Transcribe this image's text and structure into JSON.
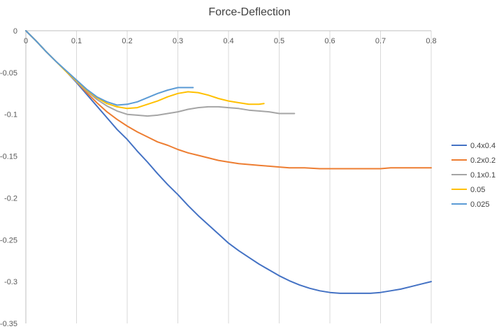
{
  "chart_data": {
    "type": "line",
    "title": "Force-Deflection",
    "xlabel": "",
    "ylabel": "",
    "xlim": [
      0,
      0.8
    ],
    "ylim": [
      -0.35,
      0
    ],
    "x_ticks": [
      "0",
      "0.1",
      "0.2",
      "0.3",
      "0.4",
      "0.5",
      "0.6",
      "0.7",
      "0.8"
    ],
    "y_ticks": [
      "0",
      "-0.05",
      "-0.1",
      "-0.15",
      "-0.2",
      "-0.25",
      "-0.3",
      "-0.35"
    ],
    "x_tick_values": [
      0,
      0.1,
      0.2,
      0.3,
      0.4,
      0.5,
      0.6,
      0.7,
      0.8
    ],
    "y_tick_values": [
      0,
      -0.05,
      -0.1,
      -0.15,
      -0.2,
      -0.25,
      -0.3,
      -0.35
    ],
    "grid": "vertical",
    "legend_position": "right",
    "series": [
      {
        "name": "0.4x0.4",
        "color": "#4472C4",
        "x": [
          0,
          0.02,
          0.04,
          0.06,
          0.08,
          0.1,
          0.12,
          0.14,
          0.16,
          0.18,
          0.2,
          0.22,
          0.24,
          0.26,
          0.28,
          0.3,
          0.32,
          0.34,
          0.36,
          0.38,
          0.4,
          0.42,
          0.44,
          0.46,
          0.48,
          0.5,
          0.52,
          0.54,
          0.56,
          0.58,
          0.6,
          0.62,
          0.64,
          0.66,
          0.68,
          0.7,
          0.72,
          0.74,
          0.76,
          0.78,
          0.8
        ],
        "y": [
          0,
          -0.012,
          -0.025,
          -0.037,
          -0.049,
          -0.062,
          -0.076,
          -0.09,
          -0.104,
          -0.118,
          -0.13,
          -0.144,
          -0.157,
          -0.171,
          -0.184,
          -0.196,
          -0.209,
          -0.221,
          -0.232,
          -0.243,
          -0.254,
          -0.263,
          -0.271,
          -0.279,
          -0.286,
          -0.293,
          -0.299,
          -0.304,
          -0.308,
          -0.311,
          -0.313,
          -0.314,
          -0.314,
          -0.314,
          -0.314,
          -0.313,
          -0.311,
          -0.309,
          -0.306,
          -0.303,
          -0.3
        ]
      },
      {
        "name": "0.2x0.2",
        "color": "#ED7D31",
        "x": [
          0,
          0.02,
          0.04,
          0.06,
          0.08,
          0.1,
          0.12,
          0.14,
          0.16,
          0.18,
          0.2,
          0.22,
          0.24,
          0.26,
          0.28,
          0.3,
          0.32,
          0.34,
          0.36,
          0.38,
          0.4,
          0.42,
          0.44,
          0.46,
          0.48,
          0.5,
          0.52,
          0.55,
          0.58,
          0.6,
          0.62,
          0.65,
          0.68,
          0.7,
          0.72,
          0.75,
          0.8
        ],
        "y": [
          0,
          -0.012,
          -0.025,
          -0.037,
          -0.049,
          -0.061,
          -0.074,
          -0.086,
          -0.097,
          -0.106,
          -0.114,
          -0.121,
          -0.127,
          -0.133,
          -0.137,
          -0.142,
          -0.146,
          -0.149,
          -0.152,
          -0.155,
          -0.157,
          -0.159,
          -0.16,
          -0.161,
          -0.162,
          -0.163,
          -0.164,
          -0.164,
          -0.165,
          -0.165,
          -0.165,
          -0.165,
          -0.165,
          -0.165,
          -0.164,
          -0.164,
          -0.164
        ]
      },
      {
        "name": "0.1x0.1",
        "color": "#A5A5A5",
        "x": [
          0,
          0.02,
          0.04,
          0.06,
          0.08,
          0.1,
          0.12,
          0.14,
          0.16,
          0.18,
          0.2,
          0.22,
          0.24,
          0.26,
          0.28,
          0.3,
          0.32,
          0.34,
          0.36,
          0.38,
          0.4,
          0.42,
          0.44,
          0.46,
          0.48,
          0.5,
          0.52,
          0.53
        ],
        "y": [
          0,
          -0.012,
          -0.025,
          -0.037,
          -0.049,
          -0.061,
          -0.072,
          -0.082,
          -0.09,
          -0.096,
          -0.1,
          -0.101,
          -0.102,
          -0.101,
          -0.099,
          -0.097,
          -0.094,
          -0.092,
          -0.091,
          -0.091,
          -0.092,
          -0.093,
          -0.095,
          -0.096,
          -0.097,
          -0.099,
          -0.099,
          -0.099
        ]
      },
      {
        "name": "0.05",
        "color": "#FFC000",
        "x": [
          0,
          0.02,
          0.04,
          0.06,
          0.08,
          0.1,
          0.12,
          0.14,
          0.16,
          0.18,
          0.2,
          0.22,
          0.24,
          0.26,
          0.28,
          0.3,
          0.32,
          0.34,
          0.36,
          0.38,
          0.4,
          0.42,
          0.44,
          0.46,
          0.47
        ],
        "y": [
          0,
          -0.012,
          -0.025,
          -0.037,
          -0.049,
          -0.06,
          -0.071,
          -0.08,
          -0.087,
          -0.091,
          -0.093,
          -0.092,
          -0.088,
          -0.084,
          -0.079,
          -0.075,
          -0.073,
          -0.074,
          -0.077,
          -0.081,
          -0.084,
          -0.086,
          -0.088,
          -0.088,
          -0.087
        ]
      },
      {
        "name": "0.025",
        "color": "#5B9BD5",
        "x": [
          0,
          0.02,
          0.04,
          0.06,
          0.08,
          0.1,
          0.12,
          0.14,
          0.16,
          0.18,
          0.2,
          0.22,
          0.24,
          0.26,
          0.28,
          0.3,
          0.32,
          0.33
        ],
        "y": [
          0,
          -0.012,
          -0.025,
          -0.037,
          -0.048,
          -0.059,
          -0.07,
          -0.079,
          -0.085,
          -0.089,
          -0.088,
          -0.085,
          -0.08,
          -0.075,
          -0.071,
          -0.068,
          -0.068,
          -0.068
        ]
      }
    ]
  }
}
